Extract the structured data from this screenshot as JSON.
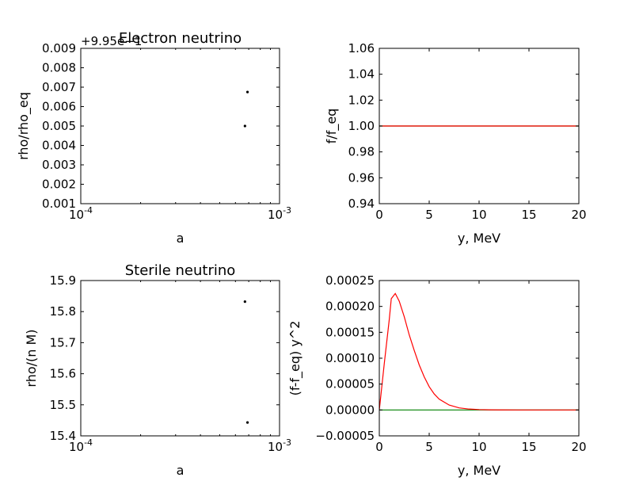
{
  "chart_data": [
    {
      "type": "scatter",
      "title": "Electron neutrino",
      "xlabel": "a",
      "ylabel": "rho/rho_eq",
      "xscale": "log",
      "xlim": [
        0.0001,
        0.001
      ],
      "ylim": [
        0.001,
        0.009
      ],
      "y_offset_label": "+9.95e−1",
      "xticks": [
        {
          "value": 0.0001,
          "base": "10",
          "exp": "-4"
        },
        {
          "value": 0.001,
          "base": "10",
          "exp": "-3"
        }
      ],
      "yticks": [
        {
          "value": 0.001,
          "label": "0.001"
        },
        {
          "value": 0.002,
          "label": "0.002"
        },
        {
          "value": 0.003,
          "label": "0.003"
        },
        {
          "value": 0.004,
          "label": "0.004"
        },
        {
          "value": 0.005,
          "label": "0.005"
        },
        {
          "value": 0.006,
          "label": "0.006"
        },
        {
          "value": 0.007,
          "label": "0.007"
        },
        {
          "value": 0.008,
          "label": "0.008"
        },
        {
          "value": 0.009,
          "label": "0.009"
        }
      ],
      "points": [
        {
          "x": 0.00067,
          "y": 0.005
        },
        {
          "x": 0.00069,
          "y": 0.00675
        }
      ],
      "color": "#000000"
    },
    {
      "type": "line",
      "title": "",
      "xlabel": "y, MeV",
      "ylabel": "f/f_eq",
      "xlim": [
        0,
        20
      ],
      "ylim": [
        0.94,
        1.06
      ],
      "xticks": [
        {
          "value": 0,
          "label": "0"
        },
        {
          "value": 5,
          "label": "5"
        },
        {
          "value": 10,
          "label": "10"
        },
        {
          "value": 15,
          "label": "15"
        },
        {
          "value": 20,
          "label": "20"
        }
      ],
      "yticks": [
        {
          "value": 0.94,
          "label": "0.94"
        },
        {
          "value": 0.96,
          "label": "0.96"
        },
        {
          "value": 0.98,
          "label": "0.98"
        },
        {
          "value": 1.0,
          "label": "1.00"
        },
        {
          "value": 1.02,
          "label": "1.02"
        },
        {
          "value": 1.04,
          "label": "1.04"
        },
        {
          "value": 1.06,
          "label": "1.06"
        }
      ],
      "series": [
        {
          "color": "#008000",
          "x": [
            0,
            20
          ],
          "y": [
            1.0,
            1.0
          ]
        },
        {
          "color": "#ff0000",
          "x": [
            0,
            20
          ],
          "y": [
            1.0,
            1.0
          ]
        }
      ]
    },
    {
      "type": "scatter",
      "title": "Sterile neutrino",
      "xlabel": "a",
      "ylabel": "rho/(n M)",
      "xscale": "log",
      "xlim": [
        0.0001,
        0.001
      ],
      "ylim": [
        15.4,
        15.9
      ],
      "xticks": [
        {
          "value": 0.0001,
          "base": "10",
          "exp": "-4"
        },
        {
          "value": 0.001,
          "base": "10",
          "exp": "-3"
        }
      ],
      "yticks": [
        {
          "value": 15.4,
          "label": "15.4"
        },
        {
          "value": 15.5,
          "label": "15.5"
        },
        {
          "value": 15.6,
          "label": "15.6"
        },
        {
          "value": 15.7,
          "label": "15.7"
        },
        {
          "value": 15.8,
          "label": "15.8"
        },
        {
          "value": 15.9,
          "label": "15.9"
        }
      ],
      "points": [
        {
          "x": 0.00067,
          "y": 15.832
        },
        {
          "x": 0.00069,
          "y": 15.443
        }
      ],
      "color": "#000000"
    },
    {
      "type": "line",
      "title": "",
      "xlabel": "y, MeV",
      "ylabel": "(f-f_eq) y^2",
      "xlim": [
        0,
        20
      ],
      "ylim": [
        -5e-05,
        0.00025
      ],
      "xticks": [
        {
          "value": 0,
          "label": "0"
        },
        {
          "value": 5,
          "label": "5"
        },
        {
          "value": 10,
          "label": "10"
        },
        {
          "value": 15,
          "label": "15"
        },
        {
          "value": 20,
          "label": "20"
        }
      ],
      "yticks": [
        {
          "value": -5e-05,
          "label": "−0.00005"
        },
        {
          "value": 0,
          "label": "0.00000"
        },
        {
          "value": 5e-05,
          "label": "0.00005"
        },
        {
          "value": 0.0001,
          "label": "0.00010"
        },
        {
          "value": 0.00015,
          "label": "0.00015"
        },
        {
          "value": 0.0002,
          "label": "0.00020"
        },
        {
          "value": 0.00025,
          "label": "0.00025"
        }
      ],
      "series": [
        {
          "color": "#008000",
          "x": [
            0,
            20
          ],
          "y": [
            0,
            0
          ]
        },
        {
          "color": "#ff0000",
          "x": [
            0,
            0.5,
            1.0,
            1.2,
            1.6,
            2.0,
            2.5,
            3.0,
            3.5,
            4.0,
            4.5,
            5.0,
            5.5,
            6.0,
            7.0,
            8.0,
            9.0,
            10.0,
            11.0,
            12.0,
            14.0,
            16.0,
            18.0,
            20.0
          ],
          "y": [
            0,
            9e-05,
            0.000175,
            0.000215,
            0.000225,
            0.00021,
            0.00018,
            0.000145,
            0.000115,
            8.7e-05,
            6.4e-05,
            4.5e-05,
            3.1e-05,
            2.1e-05,
            9.5e-06,
            4e-06,
            1.8e-06,
            8e-07,
            3e-07,
            1e-07,
            0,
            0,
            0,
            0
          ]
        }
      ]
    }
  ]
}
